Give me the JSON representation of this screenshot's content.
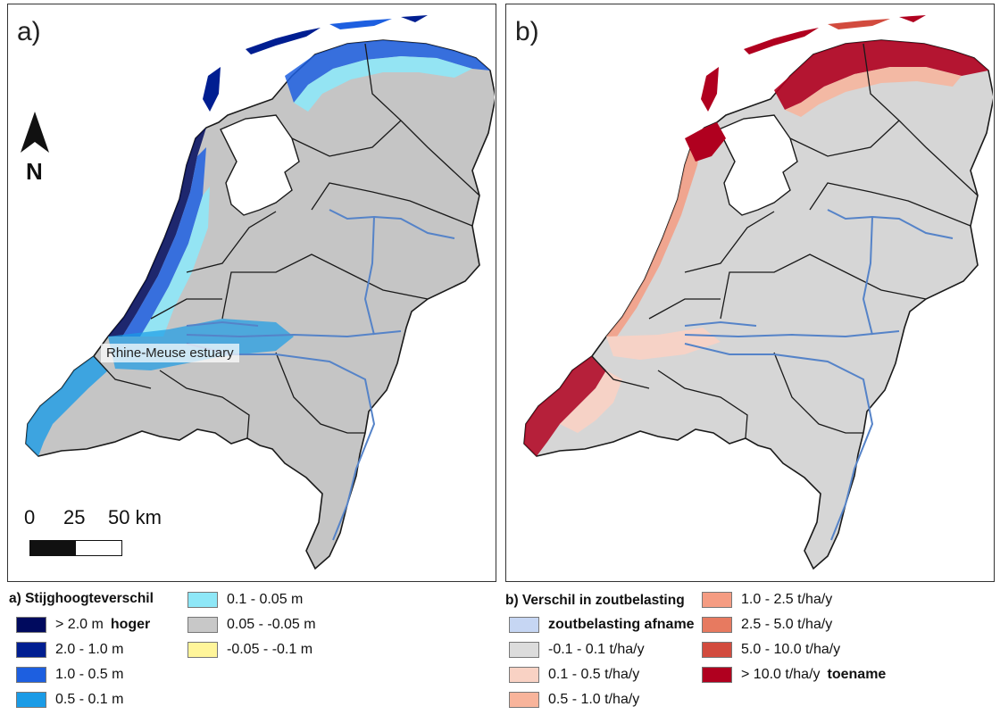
{
  "panel_a": {
    "label": "a)",
    "north_letter": "N",
    "scale": {
      "labels": [
        "0",
        "25",
        "50 km"
      ]
    },
    "estuary_label": "Rhine-Meuse estuary",
    "legend": {
      "title": "a) Stijghoogteverschil",
      "items": [
        {
          "label": "> 2.0 m",
          "note": "hoger",
          "color": "#000a5e"
        },
        {
          "label": "2.0 - 1.0 m",
          "note": "",
          "color": "#001e91"
        },
        {
          "label": "1.0 - 0.5 m",
          "note": "",
          "color": "#1d5fe0"
        },
        {
          "label": "0.5 - 0.1 m",
          "note": "",
          "color": "#1a9be6"
        },
        {
          "label": "0.1 - 0.05 m",
          "note": "",
          "color": "#8ee7f7"
        },
        {
          "label": "0.05 - -0.05 m",
          "note": "",
          "color": "#c8c8c8"
        },
        {
          "label": "-0.05 - -0.1 m",
          "note": "",
          "color": "#fff59a"
        }
      ]
    }
  },
  "panel_b": {
    "label": "b)",
    "legend": {
      "title": "b) Verschil in zoutbelasting",
      "items": [
        {
          "label": "zoutbelasting afname",
          "note": "",
          "bold": true,
          "color": "#c6d6f3"
        },
        {
          "label": "-0.1 - 0.1 t/ha/y",
          "note": "",
          "color": "#dcdcdc"
        },
        {
          "label": "0.1 - 0.5 t/ha/y",
          "note": "",
          "color": "#f9d2c4"
        },
        {
          "label": "0.5 - 1.0 t/ha/y",
          "note": "",
          "color": "#f8b49b"
        },
        {
          "label": "1.0 - 2.5 t/ha/y",
          "note": "",
          "color": "#f59c82"
        },
        {
          "label": "2.5 - 5.0 t/ha/y",
          "note": "",
          "color": "#e77a60"
        },
        {
          "label": "5.0 - 10.0 t/ha/y",
          "note": "",
          "color": "#d24b3e"
        },
        {
          "label": "> 10.0 t/ha/y",
          "note": "toename",
          "color": "#b0001f"
        }
      ]
    }
  },
  "map_colors": {
    "land": "#c5c5c5",
    "land_b": "#d6d6d6",
    "border": "#1a1a1a",
    "river": "#5583c8",
    "water": "#ffffff"
  }
}
